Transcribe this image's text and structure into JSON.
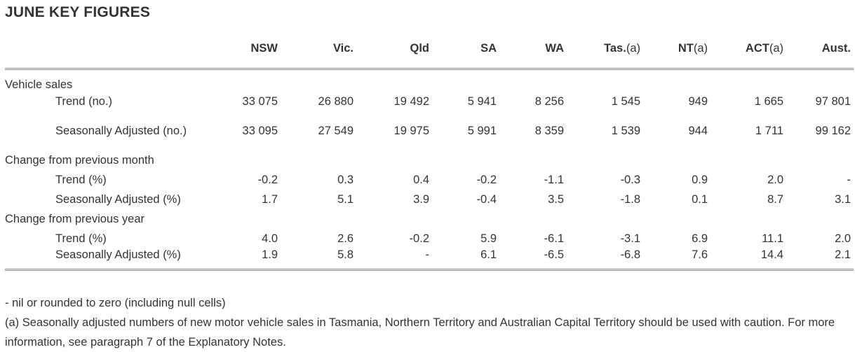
{
  "title": "JUNE KEY FIGURES",
  "columns": [
    {
      "label": "NSW",
      "note": ""
    },
    {
      "label": "Vic.",
      "note": ""
    },
    {
      "label": "Qld",
      "note": ""
    },
    {
      "label": "SA",
      "note": ""
    },
    {
      "label": "WA",
      "note": ""
    },
    {
      "label": "Tas.",
      "note": "(a)"
    },
    {
      "label": "NT",
      "note": "(a)"
    },
    {
      "label": "ACT",
      "note": "(a)"
    },
    {
      "label": "Aust.",
      "note": ""
    }
  ],
  "sections": [
    {
      "heading": "Vehicle sales",
      "rows": [
        {
          "label": "Trend (no.)",
          "values": [
            "33 075",
            "26 880",
            "19 492",
            "5 941",
            "8 256",
            "1 545",
            "949",
            "1 665",
            "97 801"
          ]
        },
        {
          "label": "Seasonally Adjusted (no.)",
          "values": [
            "33 095",
            "27 549",
            "19 975",
            "5 991",
            "8 359",
            "1 539",
            "944",
            "1 711",
            "99 162"
          ]
        }
      ]
    },
    {
      "heading": "Change from previous month",
      "rows": [
        {
          "label": "Trend (%)",
          "values": [
            "-0.2",
            "0.3",
            "0.4",
            "-0.2",
            "-1.1",
            "-0.3",
            "0.9",
            "2.0",
            "-"
          ]
        },
        {
          "label": "Seasonally Adjusted (%)",
          "values": [
            "1.7",
            "5.1",
            "3.9",
            "-0.4",
            "3.5",
            "-1.8",
            "0.1",
            "8.7",
            "3.1"
          ]
        }
      ]
    },
    {
      "heading": "Change from previous year",
      "rows": [
        {
          "label": "Trend (%)",
          "values": [
            "4.0",
            "2.6",
            "-0.2",
            "5.9",
            "-6.1",
            "-3.1",
            "6.9",
            "11.1",
            "2.0"
          ]
        },
        {
          "label": "Seasonally Adjusted (%)",
          "values": [
            "1.9",
            "5.8",
            "-",
            "6.1",
            "-6.5",
            "-6.8",
            "7.6",
            "14.4",
            "2.1"
          ]
        }
      ]
    }
  ],
  "notes": [
    "- nil or rounded to zero (including null cells)",
    "(a) Seasonally adjusted numbers of new motor vehicle sales in Tasmania, Northern Territory and Australian Capital Territory should be used with caution. For more information, see paragraph 7 of the Explanatory Notes."
  ]
}
